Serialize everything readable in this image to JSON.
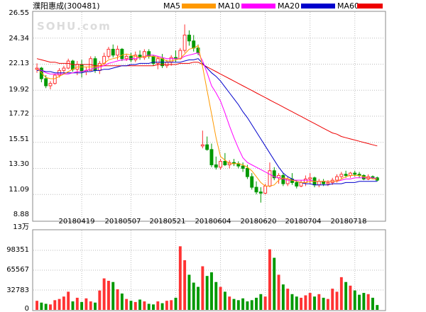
{
  "chart_data": {
    "type": "candlestick",
    "title": "濮阳惠成(300481)",
    "watermark": "SOHU.com",
    "legend": [
      {
        "name": "MA5",
        "color": "#ff9900"
      },
      {
        "name": "MA10",
        "color": "#ff00ff"
      },
      {
        "name": "MA20",
        "color": "#0000cc"
      },
      {
        "name": "MA60",
        "color": "#ee0000"
      }
    ],
    "colors": {
      "up": "#ff3333",
      "down": "#009900",
      "grid": "#bbbbbb",
      "frame": "#888888"
    },
    "price_axis": {
      "ticks": [
        "26.55",
        "24.34",
        "22.13",
        "19.92",
        "17.72",
        "15.51",
        "13.30",
        "11.09",
        "8.88"
      ],
      "ylim": [
        8.88,
        26.55
      ]
    },
    "volume_axis": {
      "unit": "13万",
      "ticks": [
        "98351",
        "65567",
        "32783",
        "0"
      ],
      "ylim": [
        0,
        131135
      ]
    },
    "x_ticks": [
      "20180419",
      "20180507",
      "20180521",
      "20180604",
      "20180620",
      "20180704",
      "20180718"
    ],
    "x_tick_index": [
      10,
      21,
      31,
      41,
      51,
      61,
      71
    ],
    "candles": [
      [
        21.7,
        22.2,
        21.4,
        21.8
      ],
      [
        21.8,
        21.9,
        20.6,
        20.9
      ],
      [
        20.9,
        21.2,
        20.1,
        20.3
      ],
      [
        20.3,
        20.7,
        20.0,
        20.5
      ],
      [
        20.5,
        21.3,
        20.4,
        21.2
      ],
      [
        21.2,
        21.8,
        21.0,
        21.6
      ],
      [
        21.6,
        22.0,
        21.3,
        21.8
      ],
      [
        21.8,
        22.6,
        21.7,
        22.4
      ],
      [
        22.4,
        22.5,
        21.5,
        21.7
      ],
      [
        21.7,
        22.4,
        21.2,
        22.1
      ],
      [
        22.1,
        22.5,
        21.0,
        21.5
      ],
      [
        21.5,
        21.9,
        21.2,
        21.6
      ],
      [
        21.6,
        22.8,
        21.6,
        22.6
      ],
      [
        22.6,
        22.8,
        21.4,
        21.6
      ],
      [
        21.6,
        22.4,
        21.3,
        22.2
      ],
      [
        22.2,
        23.1,
        22.0,
        22.8
      ],
      [
        22.8,
        23.6,
        22.6,
        23.4
      ],
      [
        23.4,
        23.8,
        22.7,
        22.9
      ],
      [
        22.9,
        23.7,
        22.5,
        23.4
      ],
      [
        23.4,
        23.5,
        22.4,
        22.6
      ],
      [
        22.6,
        23.0,
        22.4,
        22.8
      ],
      [
        22.8,
        23.1,
        22.3,
        22.5
      ],
      [
        22.5,
        23.2,
        22.3,
        22.9
      ],
      [
        22.9,
        23.3,
        22.5,
        22.7
      ],
      [
        22.7,
        23.4,
        22.5,
        23.2
      ],
      [
        23.2,
        23.4,
        22.6,
        22.8
      ],
      [
        22.8,
        22.9,
        22.0,
        22.2
      ],
      [
        22.2,
        22.8,
        21.7,
        22.6
      ],
      [
        22.6,
        23.0,
        21.8,
        22.0
      ],
      [
        22.0,
        22.5,
        21.8,
        22.3
      ],
      [
        22.3,
        22.9,
        22.0,
        22.7
      ],
      [
        22.7,
        23.3,
        22.3,
        22.6
      ],
      [
        22.6,
        23.5,
        22.5,
        23.3
      ],
      [
        23.3,
        25.5,
        23.1,
        24.6
      ],
      [
        24.6,
        25.0,
        23.7,
        24.1
      ],
      [
        24.1,
        24.6,
        23.2,
        23.5
      ],
      [
        23.5,
        23.8,
        22.9,
        23.1
      ],
      [
        15.2,
        16.5,
        15.0,
        15.3
      ],
      [
        15.3,
        16.0,
        14.8,
        14.9
      ],
      [
        14.9,
        15.4,
        13.4,
        13.6
      ],
      [
        13.6,
        14.3,
        13.2,
        13.4
      ],
      [
        13.4,
        14.1,
        13.2,
        13.9
      ],
      [
        13.9,
        14.6,
        13.5,
        13.6
      ],
      [
        13.6,
        14.0,
        13.3,
        13.8
      ],
      [
        13.8,
        14.1,
        13.5,
        13.7
      ],
      [
        13.7,
        13.9,
        13.3,
        13.5
      ],
      [
        13.5,
        13.8,
        13.0,
        13.3
      ],
      [
        13.3,
        13.6,
        12.4,
        12.6
      ],
      [
        12.6,
        12.9,
        11.5,
        11.7
      ],
      [
        11.7,
        12.2,
        11.1,
        11.3
      ],
      [
        11.3,
        11.7,
        10.4,
        11.2
      ],
      [
        11.2,
        12.0,
        11.1,
        11.8
      ],
      [
        11.8,
        13.8,
        11.7,
        13.1
      ],
      [
        13.1,
        13.4,
        12.3,
        12.5
      ],
      [
        12.5,
        12.9,
        12.0,
        12.7
      ],
      [
        12.7,
        12.9,
        11.8,
        12.0
      ],
      [
        12.0,
        12.6,
        11.8,
        12.4
      ],
      [
        12.4,
        12.9,
        11.9,
        12.1
      ],
      [
        12.1,
        12.3,
        11.6,
        11.8
      ],
      [
        11.8,
        12.3,
        11.7,
        12.1
      ],
      [
        12.1,
        12.7,
        11.8,
        12.4
      ],
      [
        12.4,
        12.9,
        12.0,
        12.5
      ],
      [
        12.5,
        12.6,
        11.7,
        11.9
      ],
      [
        11.9,
        12.4,
        11.7,
        12.2
      ],
      [
        12.2,
        12.4,
        11.8,
        12.0
      ],
      [
        12.0,
        12.3,
        11.8,
        12.1
      ],
      [
        12.1,
        12.5,
        11.9,
        12.3
      ],
      [
        12.3,
        12.8,
        12.1,
        12.6
      ],
      [
        12.6,
        13.0,
        12.4,
        12.8
      ],
      [
        12.8,
        13.1,
        12.5,
        12.7
      ],
      [
        12.7,
        13.0,
        12.5,
        12.9
      ],
      [
        12.9,
        13.1,
        12.6,
        12.8
      ],
      [
        12.8,
        13.0,
        12.5,
        12.7
      ],
      [
        12.7,
        12.8,
        12.3,
        12.4
      ],
      [
        12.4,
        12.8,
        12.3,
        12.6
      ],
      [
        12.6,
        12.7,
        12.4,
        12.5
      ],
      [
        12.5,
        12.6,
        12.2,
        12.3
      ]
    ],
    "volumes": [
      15000,
      12000,
      10000,
      9000,
      16000,
      18000,
      22000,
      30000,
      14000,
      20000,
      13000,
      19000,
      14000,
      12000,
      32000,
      52000,
      48000,
      46000,
      34000,
      27000,
      18000,
      15000,
      13000,
      17000,
      14000,
      10000,
      9000,
      14000,
      11000,
      15000,
      16000,
      20000,
      105000,
      82000,
      58000,
      45000,
      38000,
      72000,
      56000,
      62000,
      46000,
      38000,
      30000,
      22000,
      18000,
      16000,
      19000,
      14000,
      16000,
      20000,
      26000,
      22000,
      100000,
      86000,
      58000,
      42000,
      35000,
      26000,
      22000,
      20000,
      24000,
      28000,
      22000,
      26000,
      20000,
      18000,
      35000,
      30000,
      54000,
      46000,
      40000,
      32000,
      25000,
      28000,
      26000,
      20000,
      8000
    ],
    "ma5": [
      21.8,
      21.4,
      21.0,
      20.9,
      20.9,
      21.1,
      21.3,
      21.5,
      21.7,
      21.9,
      21.9,
      21.9,
      21.9,
      21.9,
      22.0,
      22.2,
      22.5,
      22.6,
      22.7,
      22.9,
      23.0,
      22.9,
      22.8,
      22.7,
      22.8,
      22.8,
      22.8,
      22.7,
      22.6,
      22.4,
      22.4,
      22.5,
      22.6,
      23.0,
      23.4,
      23.5,
      23.7,
      21.9,
      19.9,
      17.9,
      15.9,
      14.3,
      14.0,
      13.7,
      13.7,
      13.7,
      13.6,
      13.4,
      13.1,
      12.6,
      12.1,
      11.8,
      11.8,
      11.9,
      12.3,
      12.5,
      12.4,
      12.3,
      12.2,
      12.1,
      12.1,
      12.2,
      12.2,
      12.2,
      12.2,
      12.2,
      12.2,
      12.2,
      12.4,
      12.6,
      12.7,
      12.7,
      12.7,
      12.6,
      12.5,
      12.4,
      12.4
    ],
    "ma10": [
      21.8,
      21.6,
      21.4,
      21.3,
      21.3,
      21.3,
      21.3,
      21.3,
      21.4,
      21.5,
      21.5,
      21.6,
      21.7,
      21.8,
      21.9,
      22.0,
      22.2,
      22.3,
      22.4,
      22.5,
      22.5,
      22.6,
      22.6,
      22.7,
      22.8,
      22.9,
      22.9,
      22.8,
      22.7,
      22.6,
      22.6,
      22.6,
      22.6,
      22.8,
      22.9,
      23.0,
      23.1,
      22.4,
      21.4,
      20.3,
      19.7,
      19.0,
      18.0,
      16.9,
      15.9,
      15.0,
      14.2,
      13.8,
      13.6,
      13.4,
      13.2,
      13.0,
      12.8,
      12.6,
      12.5,
      12.4,
      12.3,
      12.3,
      12.3,
      12.3,
      12.3,
      12.3,
      12.2,
      12.2,
      12.2,
      12.2,
      12.2,
      12.2,
      12.3,
      12.4,
      12.4,
      12.5,
      12.5,
      12.5,
      12.5,
      12.5,
      12.4
    ],
    "ma20": [
      21.6,
      21.6,
      21.5,
      21.5,
      21.4,
      21.4,
      21.4,
      21.4,
      21.4,
      21.4,
      21.4,
      21.5,
      21.5,
      21.6,
      21.6,
      21.7,
      21.7,
      21.8,
      21.9,
      22.0,
      22.0,
      22.1,
      22.1,
      22.2,
      22.2,
      22.2,
      22.3,
      22.3,
      22.3,
      22.3,
      22.3,
      22.3,
      22.3,
      22.4,
      22.5,
      22.5,
      22.6,
      22.2,
      21.8,
      21.4,
      21.1,
      20.7,
      20.2,
      19.7,
      19.2,
      18.7,
      18.1,
      17.6,
      17.0,
      16.4,
      15.8,
      15.2,
      14.6,
      14.0,
      13.4,
      12.9,
      12.6,
      12.4,
      12.2,
      12.1,
      12.0,
      12.0,
      11.9,
      11.9,
      11.9,
      11.9,
      12.0,
      12.0,
      12.0,
      12.1,
      12.1,
      12.1,
      12.2,
      12.2,
      12.2,
      12.2,
      12.2
    ],
    "ma60": [
      22.6,
      22.5,
      22.4,
      22.3,
      22.3,
      22.2,
      22.2,
      22.2,
      22.1,
      22.1,
      22.1,
      22.1,
      22.1,
      22.0,
      22.0,
      22.0,
      22.0,
      22.0,
      22.0,
      22.0,
      22.0,
      22.0,
      22.0,
      22.0,
      22.0,
      22.0,
      22.0,
      22.1,
      22.1,
      22.1,
      22.1,
      22.1,
      22.2,
      22.2,
      22.2,
      22.3,
      22.3,
      22.1,
      21.9,
      21.7,
      21.5,
      21.3,
      21.1,
      20.9,
      20.7,
      20.5,
      20.3,
      20.1,
      19.9,
      19.7,
      19.5,
      19.3,
      19.1,
      18.9,
      18.7,
      18.5,
      18.3,
      18.1,
      17.9,
      17.7,
      17.5,
      17.3,
      17.1,
      16.9,
      16.7,
      16.5,
      16.3,
      16.2,
      16.0,
      15.9,
      15.8,
      15.7,
      15.6,
      15.5,
      15.4,
      15.3,
      15.2
    ]
  }
}
